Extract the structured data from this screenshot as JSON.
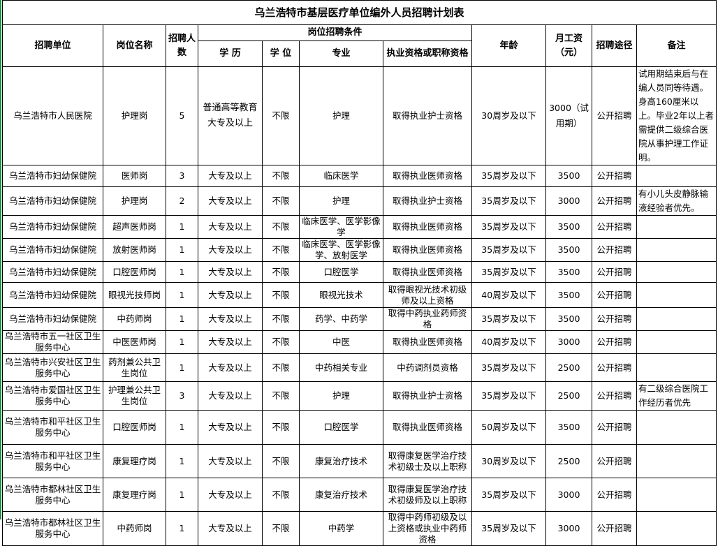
{
  "title": "乌兰浩特市基层医疗单位编外人员招聘计划表",
  "headers": {
    "unit": "招聘单位",
    "position": "岗位名称",
    "count": "招聘人数",
    "conditions": "岗位招聘条件",
    "education": "学 历",
    "degree": "学 位",
    "major": "专业",
    "qualification": "执业资格或职称资格",
    "age": "年龄",
    "salary": "月工资（元）",
    "method": "招聘途径",
    "note": "备注"
  },
  "rows": [
    {
      "unit": "乌兰浩特市人民医院",
      "position": "护理岗",
      "count": "5",
      "education": "普通高等教育大专及以上",
      "degree": "不限",
      "major": "护理",
      "qualification": "取得执业护士资格",
      "age": "30周岁及以下",
      "salary": "3000（试用期）",
      "method": "公开招聘",
      "note": "试用期结束后与在编人员同等待遇。身高160厘米以上。毕业2年以上者需提供二级综合医院从事护理工作证明。"
    },
    {
      "unit": "乌兰浩特市妇幼保健院",
      "position": "医师岗",
      "count": "3",
      "education": "大专及以上",
      "degree": "不限",
      "major": "临床医学",
      "qualification": "取得执业医师资格",
      "age": "35周岁及以下",
      "salary": "3500",
      "method": "公开招聘",
      "note": ""
    },
    {
      "unit": "乌兰浩特市妇幼保健院",
      "position": "护理岗",
      "count": "2",
      "education": "大专及以上",
      "degree": "不限",
      "major": "护理",
      "qualification": "取得执业护士资格",
      "age": "35周岁及以下",
      "salary": "3000",
      "method": "公开招聘",
      "note": "有小儿头皮静脉输液经验者优先。"
    },
    {
      "unit": "乌兰浩特市妇幼保健院",
      "position": "超声医师岗",
      "count": "1",
      "education": "大专及以上",
      "degree": "不限",
      "major": "临床医学、医学影像学",
      "qualification": "取得执业医师资格",
      "age": "35周岁及以下",
      "salary": "3500",
      "method": "公开招聘",
      "note": ""
    },
    {
      "unit": "乌兰浩特市妇幼保健院",
      "position": "放射医师岗",
      "count": "1",
      "education": "大专及以上",
      "degree": "不限",
      "major": "临床医学、医学影像学、放射医学",
      "qualification": "取得执业医师资格",
      "age": "35周岁及以下",
      "salary": "3500",
      "method": "公开招聘",
      "note": ""
    },
    {
      "unit": "乌兰浩特市妇幼保健院",
      "position": "口腔医师岗",
      "count": "1",
      "education": "大专及以上",
      "degree": "不限",
      "major": "口腔医学",
      "qualification": "取得执业医师资格",
      "age": "35周岁及以下",
      "salary": "3500",
      "method": "公开招聘",
      "note": ""
    },
    {
      "unit": "乌兰浩特市妇幼保健院",
      "position": "眼视光技师岗",
      "count": "1",
      "education": "大专及以上",
      "degree": "不限",
      "major": "眼视光技术",
      "qualification": "取得眼视光技术初级师及以上资格",
      "age": "40周岁及以下",
      "salary": "3500",
      "method": "公开招聘",
      "note": ""
    },
    {
      "unit": "乌兰浩特市妇幼保健院",
      "position": "中药师岗",
      "count": "1",
      "education": "大专及以上",
      "degree": "不限",
      "major": "药学、中药学",
      "qualification": "取得中药执业药师资格",
      "age": "35周岁及以下",
      "salary": "3500",
      "method": "公开招聘",
      "note": ""
    },
    {
      "unit": "乌兰浩特市五一社区卫生服务中心",
      "position": "中医医师岗",
      "count": "1",
      "education": "大专及以上",
      "degree": "不限",
      "major": "中医",
      "qualification": "取得执业医师资格",
      "age": "40周岁及以下",
      "salary": "3000",
      "method": "公开招聘",
      "note": ""
    },
    {
      "unit": "乌兰浩特市兴安社区卫生服务中心",
      "position": "药剂兼公共卫生岗位",
      "count": "1",
      "education": "大专及以上",
      "degree": "不限",
      "major": "中药相关专业",
      "qualification": "中药调剂员资格",
      "age": "35周岁及以下",
      "salary": "2500",
      "method": "公开招聘",
      "note": ""
    },
    {
      "unit": "乌兰浩特市爱国社区卫生服务中心",
      "position": "护理兼公共卫生岗位",
      "count": "3",
      "education": "大专及以上",
      "degree": "不限",
      "major": "护理",
      "qualification": "取得执业护士资格",
      "age": "35周岁及以下",
      "salary": "2500",
      "method": "公开招聘",
      "note": "有二级综合医院工作经历者优先"
    },
    {
      "unit": "乌兰浩特市和平社区卫生服务中心",
      "position": "口腔医师岗",
      "count": "1",
      "education": "大专及以上",
      "degree": "不限",
      "major": "口腔医学",
      "qualification": "取得执业医师资格",
      "age": "50周岁及以下",
      "salary": "3500",
      "method": "公开招聘",
      "note": ""
    },
    {
      "unit": "乌兰浩特市和平社区卫生服务中心",
      "position": "康复理疗岗",
      "count": "1",
      "education": "大专及以上",
      "degree": "不限",
      "major": "康复治疗技术",
      "qualification": "取得康复医学治疗技术初级士及以上职称",
      "age": "30周岁及以下",
      "salary": "2500",
      "method": "公开招聘",
      "note": ""
    },
    {
      "unit": "乌兰浩特市都林社区卫生服务中心",
      "position": "康复理疗岗",
      "count": "1",
      "education": "大专及以上",
      "degree": "不限",
      "major": "康复治疗技术",
      "qualification": "取得康复医学治疗技术初级师及以上职称",
      "age": "35周岁及以下",
      "salary": "3000",
      "method": "公开招聘",
      "note": ""
    },
    {
      "unit": "乌兰浩特市都林社区卫生服务中心",
      "position": "中药师岗",
      "count": "1",
      "education": "大专及以上",
      "degree": "不限",
      "major": "中药学",
      "qualification": "取得中药师初级及以上资格或执业中药师资格",
      "age": "35周岁及以下",
      "salary": "3000",
      "method": "公开招聘",
      "note": ""
    }
  ]
}
